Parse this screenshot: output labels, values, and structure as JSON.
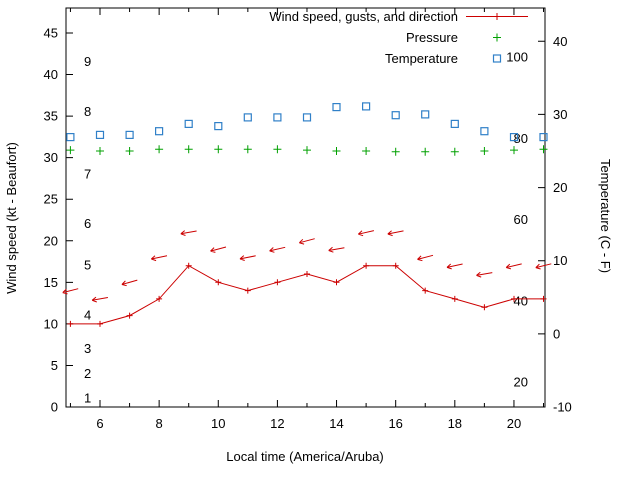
{
  "page": {
    "background": "#ffffff"
  },
  "legend": [
    {
      "label": "Wind speed, gusts, and direction",
      "marker": "line-plus",
      "color": "#cc0000"
    },
    {
      "label": "Pressure",
      "marker": "plus",
      "color": "#00a000"
    },
    {
      "label": "Temperature",
      "marker": "open-square",
      "color": "#3080c8"
    }
  ],
  "axes": {
    "left_label": "Wind speed (kt - Beaufort)",
    "right_label": "Temperature (C - F)",
    "x_label": "Local time (America/Aruba)",
    "x_major_ticks": [
      6,
      8,
      10,
      12,
      14,
      16,
      18,
      20
    ],
    "x_minor_ticks": [
      5,
      7,
      9,
      11,
      13,
      15,
      17,
      19,
      21
    ],
    "x_range": [
      4.85,
      21.05
    ],
    "left_ticks": [
      0,
      5,
      10,
      15,
      20,
      25,
      30,
      35,
      40,
      45
    ],
    "left_range": [
      0,
      48
    ],
    "right_ticks": [
      -10,
      0,
      10,
      20,
      30,
      40
    ],
    "right_range": [
      -10,
      44.55
    ],
    "beaufort_labels": [
      {
        "label": "1",
        "kt": 1
      },
      {
        "label": "2",
        "kt": 4
      },
      {
        "label": "3",
        "kt": 7
      },
      {
        "label": "4",
        "kt": 11
      },
      {
        "label": "5",
        "kt": 17
      },
      {
        "label": "6",
        "kt": 22
      },
      {
        "label": "7",
        "kt": 28
      },
      {
        "label": "8",
        "kt": 35.5
      },
      {
        "label": "9",
        "kt": 41.5
      }
    ],
    "fahrenheit_labels": [
      20,
      40,
      60,
      80,
      100
    ]
  },
  "chart_data": {
    "type": "line",
    "title": "",
    "xlabel": "Local time (America/Aruba)",
    "ylabel_left": "Wind speed (kt - Beaufort)",
    "ylabel_right": "Temperature (C - F)",
    "x_hours": [
      5,
      6,
      7,
      8,
      9,
      10,
      11,
      12,
      13,
      14,
      15,
      16,
      17,
      18,
      19,
      20,
      21
    ],
    "series": [
      {
        "name": "Wind speed",
        "axis": "left",
        "units": "kt",
        "style": "line-plus",
        "color": "#cc0000",
        "values": [
          10,
          10,
          11,
          13,
          17,
          15,
          14,
          15,
          16,
          15,
          17,
          17,
          14,
          13,
          12,
          13,
          13
        ]
      },
      {
        "name": "Wind gusts (direction arrows)",
        "axis": "left",
        "units": "kt",
        "style": "arrow",
        "color": "#cc0000",
        "values": [
          14,
          13,
          15,
          18,
          21,
          19,
          18,
          19,
          20,
          19,
          21,
          21,
          18,
          17,
          16,
          17,
          17
        ],
        "arrow_angles_deg": [
          166,
          170,
          164,
          168,
          170,
          165,
          169,
          167,
          165,
          170,
          167,
          169,
          165,
          168,
          170,
          167,
          166
        ]
      },
      {
        "name": "Pressure",
        "axis": "left",
        "style": "plus",
        "color": "#00a000",
        "values": [
          30.9,
          30.8,
          30.8,
          31.0,
          31.0,
          31.0,
          31.0,
          31.0,
          30.9,
          30.8,
          30.8,
          30.7,
          30.7,
          30.7,
          30.8,
          30.9,
          31.0
        ]
      },
      {
        "name": "Temperature",
        "axis": "right",
        "units": "C",
        "style": "open-square",
        "color": "#3080c8",
        "values": [
          26.9,
          27.2,
          27.2,
          27.7,
          28.7,
          28.4,
          29.6,
          29.6,
          29.6,
          31.0,
          31.1,
          29.9,
          30.0,
          28.7,
          27.7,
          26.9,
          26.9
        ]
      }
    ]
  }
}
